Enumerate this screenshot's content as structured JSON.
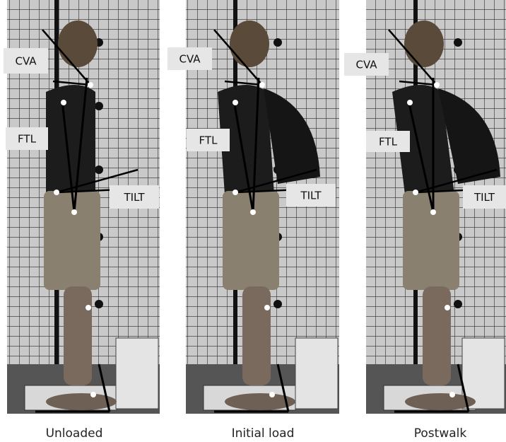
{
  "panels": [
    {
      "caption": "Unloaded",
      "labels": {
        "cva": "CVA",
        "ftl": "FTL",
        "tilt": "TILT"
      }
    },
    {
      "caption": "Initial load",
      "labels": {
        "cva": "CVA",
        "ftl": "FTL",
        "tilt": "TILT"
      }
    },
    {
      "caption": "Postwalk",
      "labels": {
        "cva": "CVA",
        "ftl": "FTL",
        "tilt": "TILT"
      }
    }
  ]
}
